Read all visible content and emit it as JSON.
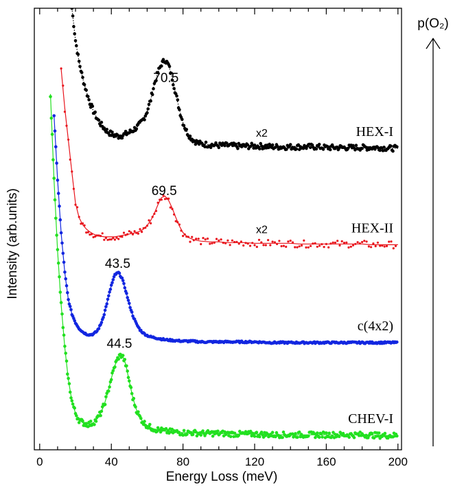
{
  "chart_data": {
    "type": "scatter",
    "xlabel": "Energy Loss  (meV)",
    "ylabel": "Intensity (arb.units)",
    "xlim": [
      -3,
      202
    ],
    "xticks": [
      0,
      40,
      80,
      120,
      160,
      200
    ],
    "x_minor_step": 10,
    "yticks": false,
    "grid": false,
    "side_arrow_label": "p(O₂)",
    "series": [
      {
        "name": "HEX-I",
        "color": "#000000",
        "line_style": "dotted",
        "baseline_offset": 4.0,
        "scale_label": "x2",
        "scale_label_x": 124,
        "peak": {
          "x": 70.5,
          "label": "70.5",
          "height": 0.85
        },
        "x": [
          18,
          20,
          22,
          24,
          26,
          28,
          30,
          32,
          34,
          36,
          38,
          40,
          42,
          44,
          46,
          48,
          50,
          52,
          54,
          56,
          58,
          60,
          62,
          64,
          66,
          68,
          70,
          72,
          74,
          76,
          78,
          80,
          82,
          84,
          86,
          88,
          90,
          95,
          100,
          105,
          110,
          115,
          120,
          125,
          130,
          135,
          140,
          145,
          150,
          155,
          160,
          165,
          170,
          175,
          180,
          185,
          190,
          195,
          200
        ],
        "y": [
          2.0,
          1.55,
          1.25,
          1.02,
          0.84,
          0.68,
          0.56,
          0.46,
          0.38,
          0.32,
          0.27,
          0.24,
          0.22,
          0.21,
          0.22,
          0.24,
          0.26,
          0.29,
          0.33,
          0.38,
          0.45,
          0.56,
          0.72,
          0.94,
          1.1,
          1.22,
          1.28,
          1.2,
          1.02,
          0.8,
          0.58,
          0.4,
          0.28,
          0.2,
          0.15,
          0.12,
          0.1,
          0.09,
          0.08,
          0.08,
          0.07,
          0.07,
          0.07,
          0.07,
          0.06,
          0.06,
          0.06,
          0.06,
          0.06,
          0.06,
          0.05,
          0.05,
          0.05,
          0.05,
          0.05,
          0.05,
          0.05,
          0.04,
          0.04
        ]
      },
      {
        "name": "HEX-II",
        "color": "#e8141c",
        "line_style": "solid",
        "baseline_offset": 2.65,
        "scale_label": "x2",
        "scale_label_x": 124,
        "peak": {
          "x": 69.5,
          "label": "69.5",
          "height": 0.62
        },
        "x": [
          12,
          14,
          16,
          18,
          20,
          22,
          24,
          26,
          28,
          30,
          32,
          34,
          36,
          38,
          40,
          42,
          44,
          46,
          48,
          50,
          52,
          54,
          56,
          58,
          60,
          62,
          64,
          66,
          68,
          70,
          72,
          74,
          76,
          78,
          80,
          82,
          84,
          86,
          90,
          95,
          100,
          105,
          110,
          115,
          120,
          125,
          130,
          135,
          140,
          145,
          150,
          155,
          160,
          165,
          170,
          175,
          180,
          185,
          190,
          195,
          200
        ],
        "y": [
          2.5,
          1.95,
          1.5,
          1.05,
          0.62,
          0.42,
          0.32,
          0.26,
          0.22,
          0.19,
          0.17,
          0.16,
          0.15,
          0.15,
          0.15,
          0.15,
          0.16,
          0.17,
          0.18,
          0.19,
          0.2,
          0.21,
          0.23,
          0.26,
          0.31,
          0.38,
          0.48,
          0.6,
          0.7,
          0.72,
          0.66,
          0.55,
          0.42,
          0.3,
          0.21,
          0.16,
          0.13,
          0.11,
          0.09,
          0.08,
          0.08,
          0.07,
          0.07,
          0.07,
          0.06,
          0.06,
          0.06,
          0.06,
          0.06,
          0.05,
          0.05,
          0.05,
          0.05,
          0.05,
          0.05,
          0.05,
          0.05,
          0.04,
          0.04,
          0.04,
          0.04
        ]
      },
      {
        "name": "c(4x2)",
        "color": "#1226e0",
        "line_style": "solid",
        "baseline_offset": 1.3,
        "peak": {
          "x": 43.5,
          "label": "43.5",
          "height": 0.95
        },
        "x": [
          8,
          10,
          12,
          14,
          16,
          18,
          20,
          22,
          24,
          26,
          28,
          30,
          32,
          34,
          36,
          38,
          40,
          42,
          44,
          46,
          48,
          50,
          52,
          54,
          56,
          58,
          60,
          62,
          64,
          66,
          68,
          70,
          75,
          80,
          85,
          90,
          100,
          110,
          120,
          130,
          140,
          150,
          160,
          170,
          180,
          190,
          200
        ],
        "y": [
          3.2,
          2.3,
          1.55,
          1.0,
          0.62,
          0.42,
          0.3,
          0.22,
          0.17,
          0.14,
          0.13,
          0.14,
          0.18,
          0.27,
          0.42,
          0.62,
          0.82,
          0.97,
          1.0,
          0.92,
          0.75,
          0.56,
          0.4,
          0.28,
          0.2,
          0.15,
          0.12,
          0.1,
          0.09,
          0.08,
          0.07,
          0.06,
          0.05,
          0.04,
          0.04,
          0.03,
          0.03,
          0.03,
          0.03,
          0.02,
          0.02,
          0.02,
          0.02,
          0.02,
          0.02,
          0.02,
          0.02
        ]
      },
      {
        "name": "CHEV-I",
        "color": "#22e020",
        "line_style": "solid",
        "baseline_offset": 0.0,
        "peak": {
          "x": 44.5,
          "label": "44.5",
          "height": 1.13
        },
        "x": [
          6,
          8,
          10,
          12,
          14,
          16,
          18,
          20,
          22,
          24,
          26,
          28,
          30,
          32,
          34,
          36,
          38,
          40,
          42,
          44,
          46,
          48,
          50,
          52,
          54,
          56,
          58,
          60,
          62,
          64,
          66,
          68,
          70,
          75,
          80,
          85,
          90,
          100,
          110,
          120,
          130,
          140,
          150,
          160,
          170,
          180,
          190,
          200
        ],
        "y": [
          4.8,
          3.6,
          2.6,
          1.85,
          1.25,
          0.8,
          0.5,
          0.33,
          0.24,
          0.2,
          0.18,
          0.18,
          0.2,
          0.25,
          0.33,
          0.45,
          0.62,
          0.82,
          1.0,
          1.12,
          1.15,
          1.02,
          0.78,
          0.55,
          0.38,
          0.27,
          0.2,
          0.16,
          0.13,
          0.11,
          0.1,
          0.09,
          0.08,
          0.07,
          0.06,
          0.06,
          0.05,
          0.05,
          0.04,
          0.04,
          0.03,
          0.03,
          0.03,
          0.03,
          0.03,
          0.03,
          0.02,
          0.02
        ]
      }
    ]
  }
}
